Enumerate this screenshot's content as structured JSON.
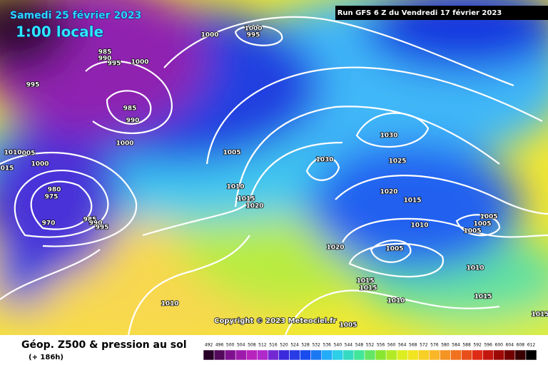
{
  "header": {
    "date": "Samedi 25 février 2023",
    "time": "1:00 locale",
    "run": "Run GFS 6 Z du Vendredi 17 février 2023"
  },
  "copyright": "Copyright © 2023 Meteociel.fr",
  "footer": {
    "title": "Géop. Z500 & pression au sol",
    "subtitle": "(+ 186h)"
  },
  "isobar_labels": [
    "1000",
    "1000",
    "995",
    "985",
    "990",
    "995",
    "1000",
    "995",
    "985",
    "990",
    "1000",
    "1010",
    "005",
    "1000",
    "015",
    "1005",
    "1030",
    "1030",
    "1025",
    "1020",
    "1015",
    "1010",
    "1015",
    "1020",
    "980",
    "975",
    "970",
    "985",
    "990",
    "995",
    "1010",
    "1005",
    "1005",
    "1005",
    "1005",
    "1020",
    "1010",
    "1015",
    "1015",
    "1015",
    "1010",
    "1010",
    "1005",
    "1015"
  ],
  "legend": {
    "labels": [
      492,
      496,
      500,
      504,
      508,
      512,
      516,
      520,
      524,
      528,
      532,
      536,
      540,
      544,
      548,
      552,
      556,
      560,
      564,
      568,
      572,
      576,
      580,
      584,
      588,
      592,
      596,
      600,
      604,
      608,
      612
    ]
  }
}
